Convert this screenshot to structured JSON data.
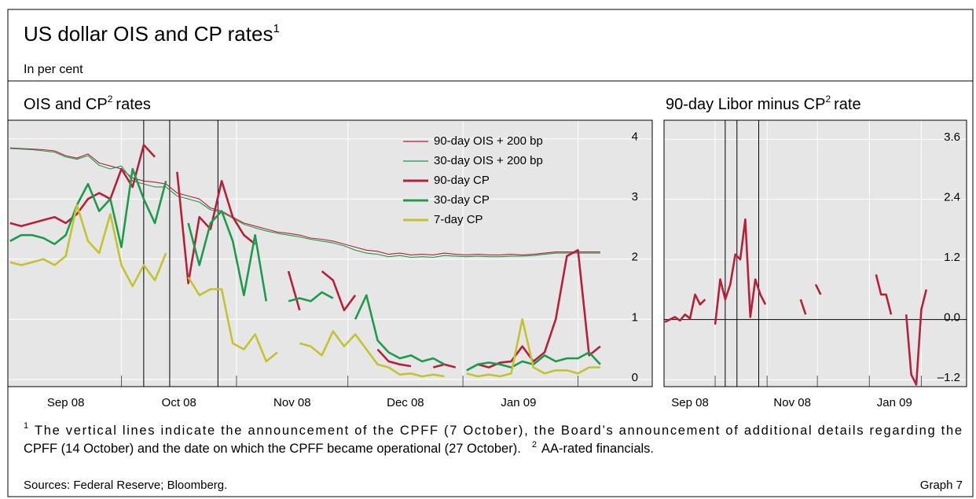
{
  "header": {
    "title": "US dollar OIS and CP rates",
    "title_note": "1",
    "subtitle": "In per cent"
  },
  "chart_data": [
    {
      "type": "line",
      "title": "OIS and CP",
      "title_note": "2",
      "title_end": "rates",
      "x": [
        0,
        3,
        6,
        9,
        12,
        15,
        18,
        21,
        24,
        27,
        30,
        33,
        36,
        39,
        42,
        45,
        48,
        51,
        54,
        57,
        60,
        63,
        66,
        69,
        72,
        75,
        78,
        81,
        84,
        87,
        90,
        93,
        96,
        99,
        102,
        105,
        108,
        111,
        114,
        117,
        120,
        123,
        126,
        129,
        132,
        135,
        138,
        141,
        144,
        147,
        150,
        153,
        156,
        159
      ],
      "xlim": [
        -0.6,
        173
      ],
      "xticks": [
        {
          "value": 15,
          "label": "Sep 08"
        },
        {
          "value": 45.5,
          "label": "Oct 08"
        },
        {
          "value": 76,
          "label": "Nov 08"
        },
        {
          "value": 106.5,
          "label": "Dec 08"
        },
        {
          "value": 137,
          "label": "Jan 09"
        }
      ],
      "month_starts": [
        30,
        61,
        91,
        122,
        153
      ],
      "event_lines": [
        36,
        43,
        56
      ],
      "ylim": [
        -0.12,
        4.31
      ],
      "yticks": [
        0,
        1,
        2,
        3,
        4
      ],
      "grid": true,
      "series": [
        {
          "name": "90-day OIS + 200 bp",
          "color": "#b3213a",
          "weight": "thin",
          "values": [
            3.85,
            3.84,
            3.83,
            3.82,
            3.8,
            3.72,
            3.68,
            3.75,
            3.6,
            3.55,
            3.5,
            3.35,
            3.3,
            3.28,
            3.25,
            3.1,
            3.05,
            3.0,
            2.85,
            2.8,
            2.7,
            2.6,
            2.55,
            2.5,
            2.45,
            2.43,
            2.4,
            2.35,
            2.33,
            2.3,
            2.25,
            2.2,
            2.15,
            2.13,
            2.08,
            2.1,
            2.07,
            2.08,
            2.07,
            2.1,
            2.08,
            2.07,
            2.08,
            2.07,
            2.07,
            2.08,
            2.07,
            2.08,
            2.1,
            2.12,
            2.12,
            2.12,
            2.12,
            2.12
          ]
        },
        {
          "name": "30-day OIS + 200 bp",
          "color": "#1d9a4c",
          "weight": "thin",
          "values": [
            3.84,
            3.83,
            3.82,
            3.8,
            3.78,
            3.7,
            3.66,
            3.72,
            3.56,
            3.5,
            3.55,
            3.3,
            3.25,
            3.2,
            3.2,
            3.05,
            3.0,
            2.95,
            2.82,
            2.78,
            2.68,
            2.58,
            2.52,
            2.47,
            2.43,
            2.4,
            2.37,
            2.33,
            2.3,
            2.27,
            2.22,
            2.15,
            2.1,
            2.08,
            2.04,
            2.06,
            2.03,
            2.04,
            2.03,
            2.06,
            2.05,
            2.04,
            2.05,
            2.04,
            2.04,
            2.05,
            2.05,
            2.06,
            2.08,
            2.1,
            2.1,
            2.1,
            2.1,
            2.1
          ]
        },
        {
          "name": "90-day CP",
          "color": "#b3213a",
          "weight": "thick",
          "values": [
            2.6,
            2.55,
            2.6,
            2.65,
            2.7,
            2.6,
            2.75,
            3.0,
            3.1,
            3.0,
            3.5,
            3.2,
            3.9,
            3.7,
            null,
            3.45,
            1.6,
            2.7,
            2.5,
            3.3,
            2.7,
            2.4,
            2.25,
            null,
            null,
            1.8,
            1.15,
            null,
            1.8,
            1.65,
            1.15,
            1.4,
            null,
            0.5,
            0.3,
            0.25,
            0.22,
            null,
            0.2,
            0.25,
            0.2,
            null,
            0.25,
            0.2,
            0.28,
            0.3,
            0.55,
            0.3,
            0.45,
            1.0,
            2.05,
            2.15,
            0.4,
            0.55
          ]
        },
        {
          "name": "30-day CP",
          "color": "#1d9a4c",
          "weight": "thick",
          "values": [
            2.3,
            2.4,
            2.4,
            2.35,
            2.25,
            2.4,
            2.9,
            3.25,
            2.8,
            3.0,
            2.2,
            3.5,
            3.0,
            2.6,
            3.3,
            null,
            2.6,
            1.9,
            2.6,
            2.8,
            2.3,
            1.4,
            2.4,
            1.3,
            null,
            1.3,
            1.35,
            1.3,
            1.45,
            1.35,
            null,
            1.0,
            1.4,
            0.65,
            0.45,
            0.35,
            0.4,
            0.3,
            0.35,
            0.25,
            null,
            0.15,
            0.25,
            0.28,
            0.25,
            0.2,
            0.3,
            0.25,
            0.4,
            0.3,
            0.35,
            0.35,
            0.45,
            0.25
          ]
        },
        {
          "name": "7-day CP",
          "color": "#c3c332",
          "weight": "thick",
          "values": [
            1.95,
            1.9,
            1.95,
            2.0,
            1.9,
            2.05,
            2.9,
            2.3,
            2.1,
            2.75,
            1.9,
            1.55,
            1.9,
            1.65,
            2.1,
            null,
            1.7,
            1.4,
            1.5,
            1.5,
            0.6,
            0.5,
            0.75,
            0.3,
            0.45,
            null,
            0.6,
            0.55,
            0.4,
            0.8,
            0.55,
            0.75,
            0.5,
            0.25,
            0.2,
            0.08,
            0.1,
            0.05,
            0.08,
            0.05,
            null,
            0.1,
            0.05,
            0.08,
            0.05,
            0.1,
            1.0,
            0.2,
            0.1,
            0.15,
            0.15,
            0.1,
            0.2,
            0.2
          ]
        }
      ]
    },
    {
      "type": "line",
      "title": "90-day Libor minus CP",
      "title_note": "2",
      "title_end": "rate",
      "x": [
        0,
        3,
        6,
        9,
        12,
        15,
        18,
        21,
        24,
        27,
        30,
        33,
        36,
        39,
        42,
        45,
        48,
        51,
        54,
        57,
        60,
        63,
        66,
        69,
        72,
        75,
        78,
        81,
        84,
        87,
        90,
        93,
        96,
        99,
        102,
        105,
        108,
        111,
        114,
        117,
        120,
        123,
        126,
        129,
        132,
        135,
        138,
        141,
        144,
        147,
        150,
        153,
        156,
        159
      ],
      "xlim": [
        -0.5,
        180
      ],
      "xticks": [
        {
          "value": 15,
          "label": "Sep 08"
        },
        {
          "value": 76,
          "label": "Nov 08"
        },
        {
          "value": 137,
          "label": "Jan 09"
        }
      ],
      "month_starts": [
        30,
        61,
        91,
        122,
        153
      ],
      "event_lines": [
        36,
        43,
        56
      ],
      "ylim": [
        -1.34,
        3.98
      ],
      "yticks": [
        {
          "value": -1.2,
          "label": "–1.2"
        },
        {
          "value": 0,
          "label": "0.0"
        },
        1.2,
        2.4,
        3.6
      ],
      "grid": true,
      "zero_line": true,
      "series": [
        {
          "color": "#b3213a",
          "weight": "thick",
          "values": [
            -0.05,
            0.0,
            0.05,
            -0.02,
            0.1,
            0.02,
            0.5,
            0.3,
            0.4,
            null,
            -0.1,
            0.8,
            0.4,
            0.7,
            1.3,
            1.2,
            2.0,
            0.05,
            0.8,
            0.5,
            0.3,
            null,
            null,
            0.8,
            null,
            0.55,
            null,
            0.4,
            0.1,
            null,
            0.7,
            0.5,
            null,
            null,
            null,
            null,
            null,
            null,
            null,
            null,
            null,
            null,
            0.9,
            0.5,
            0.5,
            0.1,
            null,
            null,
            0.1,
            -1.1,
            -1.3,
            0.2,
            0.6,
            null
          ]
        }
      ]
    }
  ],
  "footnotes": [
    {
      "marker": "1",
      "lines": [
        "The vertical lines indicate the announcement of the CPFF (7 October), the Board’s announcement of additional details regarding the",
        "CPFF (14 October) and the date on which the CPFF became operational (27 October)."
      ]
    },
    {
      "marker": "2",
      "text": "AA-rated financials."
    }
  ],
  "sources": "Sources: Federal Reserve; Bloomberg.",
  "graph_label": "Graph 7"
}
